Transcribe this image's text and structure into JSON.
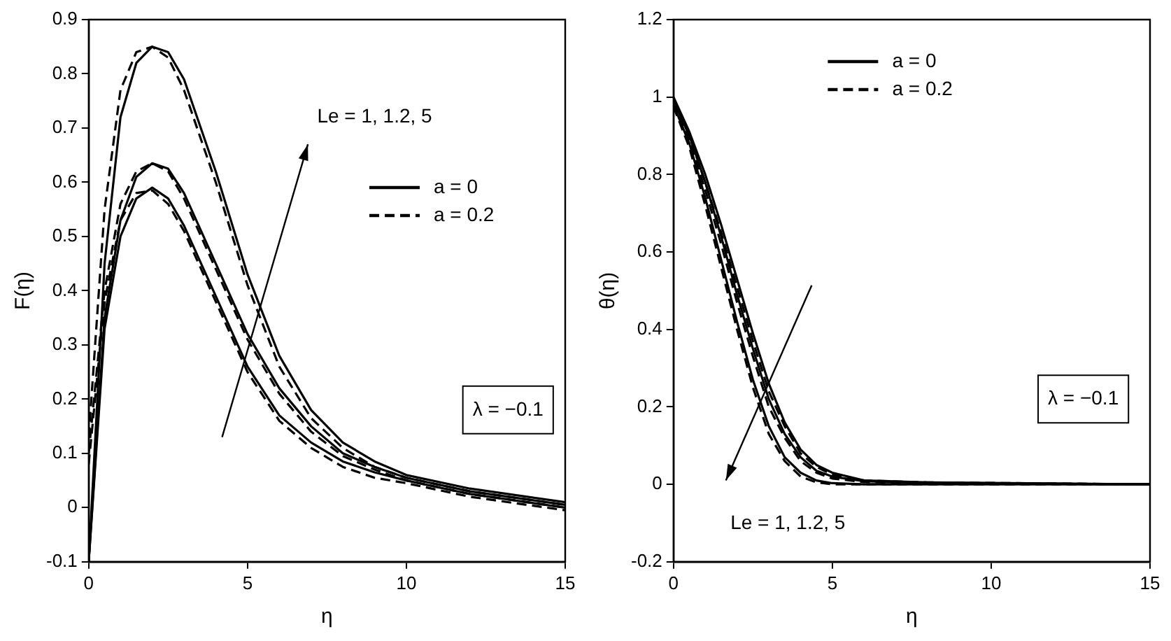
{
  "chart_data": [
    {
      "type": "line",
      "xlabel": "η",
      "ylabel": "F(η)",
      "xlim": [
        0,
        15
      ],
      "ylim": [
        -0.1,
        0.9
      ],
      "xticks": [
        0,
        5,
        10,
        15
      ],
      "yticks": [
        -0.1,
        0,
        0.1,
        0.2,
        0.3,
        0.4,
        0.5,
        0.6,
        0.7,
        0.8,
        0.9
      ],
      "grid": false,
      "legend": "top right",
      "annotations": [
        "Le = 1, 1.2, 5",
        "λ = −0.1"
      ],
      "x": [
        0,
        0.5,
        1,
        1.5,
        2,
        2.5,
        3,
        4,
        5,
        6,
        7,
        8,
        9,
        10,
        12,
        15
      ],
      "series": [
        {
          "name": "a = 0",
          "color": "#000000",
          "line_style": "solid",
          "values": [
            -0.1,
            0.33,
            0.5,
            0.57,
            0.59,
            0.57,
            0.52,
            0.39,
            0.26,
            0.17,
            0.12,
            0.085,
            0.065,
            0.05,
            0.025,
            0.0
          ]
        },
        {
          "name": "a = 0.2",
          "color": "#000000",
          "line_style": "dashed",
          "values": [
            0.08,
            0.38,
            0.53,
            0.58,
            0.585,
            0.56,
            0.51,
            0.38,
            0.25,
            0.16,
            0.11,
            0.075,
            0.055,
            0.045,
            0.02,
            -0.005
          ]
        },
        {
          "color": "#000000",
          "line_style": "solid",
          "values": [
            -0.1,
            0.35,
            0.53,
            0.61,
            0.635,
            0.625,
            0.58,
            0.45,
            0.32,
            0.22,
            0.15,
            0.1,
            0.075,
            0.055,
            0.03,
            0.005
          ]
        },
        {
          "color": "#000000",
          "line_style": "dashed",
          "values": [
            0.1,
            0.4,
            0.56,
            0.62,
            0.635,
            0.62,
            0.57,
            0.44,
            0.31,
            0.21,
            0.14,
            0.095,
            0.07,
            0.05,
            0.025,
            0.0
          ]
        },
        {
          "color": "#000000",
          "line_style": "solid",
          "values": [
            -0.1,
            0.45,
            0.72,
            0.82,
            0.85,
            0.84,
            0.79,
            0.62,
            0.43,
            0.28,
            0.18,
            0.12,
            0.085,
            0.06,
            0.035,
            0.01
          ]
        },
        {
          "color": "#000000",
          "line_style": "dashed",
          "values": [
            0.13,
            0.55,
            0.77,
            0.84,
            0.85,
            0.83,
            0.77,
            0.6,
            0.41,
            0.26,
            0.165,
            0.11,
            0.075,
            0.055,
            0.03,
            0.005
          ]
        }
      ]
    },
    {
      "type": "line",
      "xlabel": "η",
      "ylabel": "θ(η)",
      "xlim": [
        0,
        15
      ],
      "ylim": [
        -0.2,
        1.2
      ],
      "xticks": [
        0,
        5,
        10,
        15
      ],
      "yticks": [
        -0.2,
        0,
        0.2,
        0.4,
        0.6,
        0.8,
        1,
        1.2
      ],
      "grid": false,
      "legend": "top",
      "annotations": [
        "Le = 1, 1.2, 5",
        "λ = −0.1"
      ],
      "x": [
        0,
        0.5,
        1,
        1.5,
        2,
        2.5,
        3,
        3.5,
        4,
        4.5,
        5,
        6,
        8,
        15
      ],
      "series": [
        {
          "name": "a = 0",
          "color": "#000000",
          "line_style": "solid",
          "values": [
            1,
            0.91,
            0.8,
            0.67,
            0.53,
            0.39,
            0.26,
            0.16,
            0.09,
            0.05,
            0.03,
            0.01,
            0.005,
            0
          ]
        },
        {
          "name": "a = 0.2",
          "color": "#000000",
          "line_style": "dashed",
          "values": [
            0.995,
            0.9,
            0.78,
            0.65,
            0.51,
            0.37,
            0.24,
            0.15,
            0.08,
            0.045,
            0.025,
            0.01,
            0.005,
            0
          ]
        },
        {
          "color": "#000000",
          "line_style": "solid",
          "values": [
            0.99,
            0.9,
            0.78,
            0.64,
            0.49,
            0.35,
            0.22,
            0.13,
            0.07,
            0.035,
            0.02,
            0.008,
            0.004,
            0
          ]
        },
        {
          "color": "#000000",
          "line_style": "dashed",
          "values": [
            0.985,
            0.89,
            0.76,
            0.62,
            0.47,
            0.33,
            0.2,
            0.12,
            0.06,
            0.03,
            0.015,
            0.006,
            0.003,
            0
          ]
        },
        {
          "color": "#000000",
          "line_style": "solid",
          "values": [
            0.98,
            0.88,
            0.74,
            0.58,
            0.42,
            0.27,
            0.15,
            0.07,
            0.03,
            0.01,
            0.003,
            0,
            0,
            0
          ]
        },
        {
          "color": "#000000",
          "line_style": "dashed",
          "values": [
            0.975,
            0.87,
            0.72,
            0.56,
            0.4,
            0.25,
            0.13,
            0.06,
            0.02,
            0.005,
            0,
            0,
            0,
            0
          ]
        }
      ]
    }
  ]
}
